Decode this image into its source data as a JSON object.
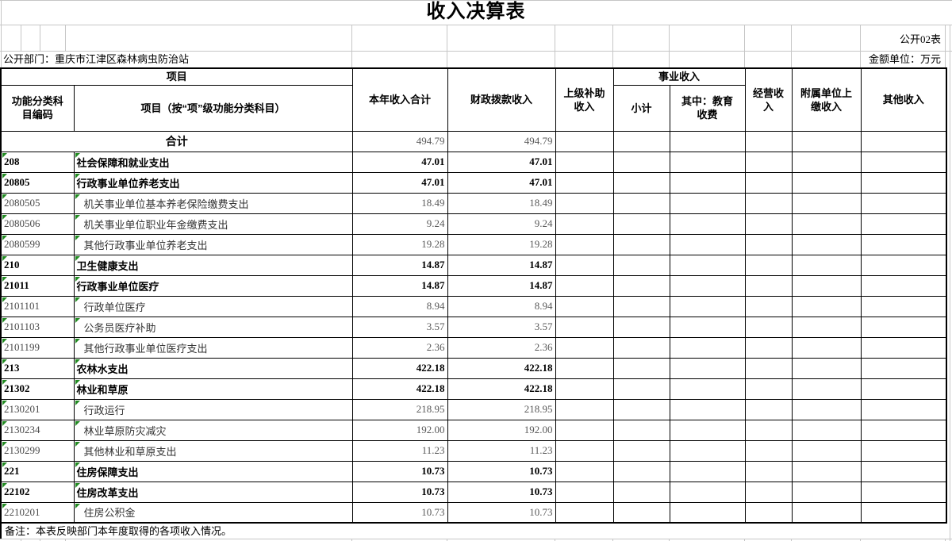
{
  "title": "收入决算表",
  "meta": {
    "sheet_label": "公开02表",
    "department_label": "公开部门：重庆市江津区森林病虫防治站",
    "unit_label": "金额单位：万元"
  },
  "table": {
    "header": {
      "project_group": "项目",
      "code": "功能分类科目编码",
      "name": "项目（按“项”级功能分类科目）",
      "total": "本年收入合计",
      "fiscal": "财政拨款收入",
      "superior": "上级补助收入",
      "business_group": "事业收入",
      "business_subtotal": "小计",
      "business_education": "其中：教育收费",
      "operating": "经营收入",
      "affiliated": "附属单位上缴收入",
      "other": "其他收入"
    },
    "total_row": {
      "name": "合计",
      "total": "494.79",
      "fiscal": "494.79"
    },
    "rows": [
      {
        "code": "208",
        "name": "社会保障和就业支出",
        "total": "47.01",
        "fiscal": "47.01",
        "level": "summary"
      },
      {
        "code": "20805",
        "name": "行政事业单位养老支出",
        "total": "47.01",
        "fiscal": "47.01",
        "level": "summary"
      },
      {
        "code": "2080505",
        "name": "机关事业单位基本养老保险缴费支出",
        "total": "18.49",
        "fiscal": "18.49",
        "level": "detail"
      },
      {
        "code": "2080506",
        "name": "机关事业单位职业年金缴费支出",
        "total": "9.24",
        "fiscal": "9.24",
        "level": "detail"
      },
      {
        "code": "2080599",
        "name": "其他行政事业单位养老支出",
        "total": "19.28",
        "fiscal": "19.28",
        "level": "detail"
      },
      {
        "code": "210",
        "name": "卫生健康支出",
        "total": "14.87",
        "fiscal": "14.87",
        "level": "summary"
      },
      {
        "code": "21011",
        "name": "行政事业单位医疗",
        "total": "14.87",
        "fiscal": "14.87",
        "level": "summary"
      },
      {
        "code": "2101101",
        "name": "行政单位医疗",
        "total": "8.94",
        "fiscal": "8.94",
        "level": "detail"
      },
      {
        "code": "2101103",
        "name": "公务员医疗补助",
        "total": "3.57",
        "fiscal": "3.57",
        "level": "detail"
      },
      {
        "code": "2101199",
        "name": "其他行政事业单位医疗支出",
        "total": "2.36",
        "fiscal": "2.36",
        "level": "detail"
      },
      {
        "code": "213",
        "name": "农林水支出",
        "total": "422.18",
        "fiscal": "422.18",
        "level": "summary"
      },
      {
        "code": "21302",
        "name": "林业和草原",
        "total": "422.18",
        "fiscal": "422.18",
        "level": "summary"
      },
      {
        "code": "2130201",
        "name": "行政运行",
        "total": "218.95",
        "fiscal": "218.95",
        "level": "detail"
      },
      {
        "code": "2130234",
        "name": "林业草原防灾减灾",
        "total": "192.00",
        "fiscal": "192.00",
        "level": "detail"
      },
      {
        "code": "2130299",
        "name": "其他林业和草原支出",
        "total": "11.23",
        "fiscal": "11.23",
        "level": "detail"
      },
      {
        "code": "221",
        "name": "住房保障支出",
        "total": "10.73",
        "fiscal": "10.73",
        "level": "summary"
      },
      {
        "code": "22102",
        "name": "住房改革支出",
        "total": "10.73",
        "fiscal": "10.73",
        "level": "summary"
      },
      {
        "code": "2210201",
        "name": "住房公积金",
        "total": "10.73",
        "fiscal": "10.73",
        "level": "detail"
      }
    ],
    "note": "备注：本表反映部门本年度取得的各项收入情况。"
  }
}
